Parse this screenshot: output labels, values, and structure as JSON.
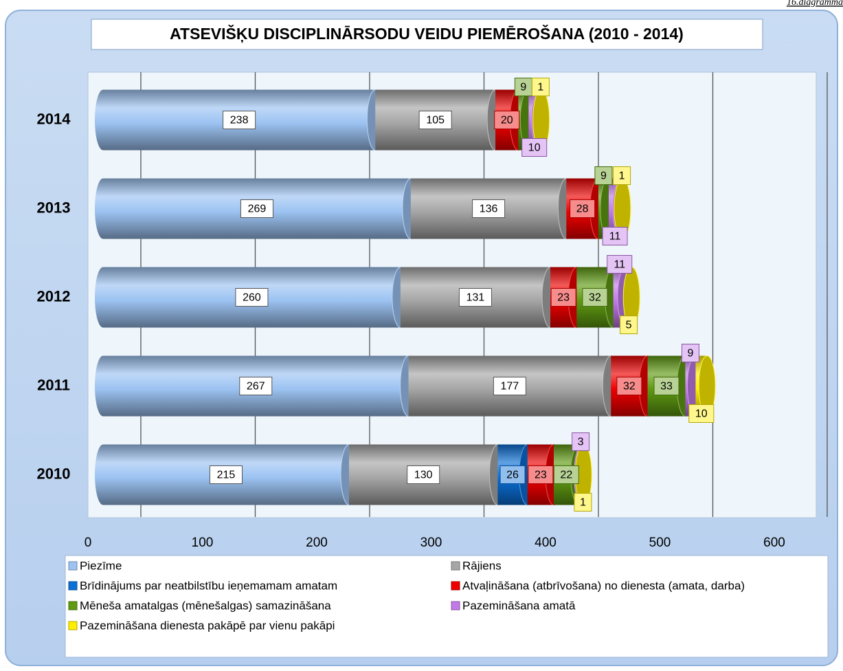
{
  "chart_data": {
    "type": "bar",
    "orientation": "horizontal",
    "stacked": true,
    "title": "ATSEVIŠĶU DISCIPLINĀRSODU VEIDU PIEMĒROŠANA (2010 - 2014)",
    "corner_note": "16.diagramma",
    "categories": [
      "2014",
      "2013",
      "2012",
      "2011",
      "2010"
    ],
    "series": [
      {
        "name": "Piezīme",
        "color": "#9cc3f2",
        "values": [
          238,
          269,
          260,
          267,
          215
        ]
      },
      {
        "name": "Rājiens",
        "color": "#a6a6a6",
        "values": [
          105,
          136,
          131,
          177,
          130
        ]
      },
      {
        "name": "Brīdinājums par neatbilstību ieņemamam amatam",
        "color": "#0a6fd6",
        "values": [
          null,
          null,
          null,
          null,
          26
        ]
      },
      {
        "name": "Atvaļināšana (atbrīvošana) no dienesta (amata, darba)",
        "color": "#ee0000",
        "values": [
          20,
          28,
          23,
          32,
          23
        ]
      },
      {
        "name": "Mēneša amatalgas (mēnešalgas) samazināšana",
        "color": "#5f9a12",
        "values": [
          9,
          9,
          32,
          33,
          22
        ]
      },
      {
        "name": "Pazemināšana amatā",
        "color": "#c27ae8",
        "values": [
          10,
          11,
          11,
          9,
          3
        ]
      },
      {
        "name": "Pazemināšana dienesta pakāpē par vienu pakāpi",
        "color": "#ffee00",
        "values": [
          1,
          1,
          5,
          10,
          1
        ]
      }
    ],
    "xlim": [
      0,
      600
    ],
    "xticks": [
      0,
      100,
      200,
      300,
      400,
      500,
      600
    ],
    "grid": true,
    "legend": "bottom"
  }
}
